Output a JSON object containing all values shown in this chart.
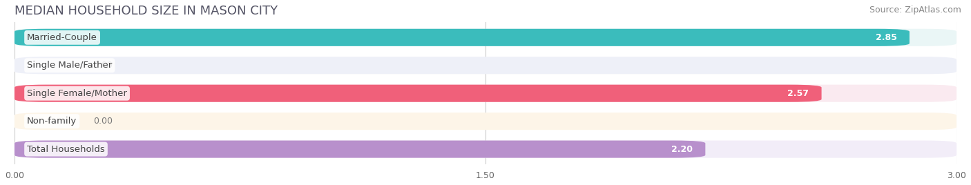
{
  "title": "MEDIAN HOUSEHOLD SIZE IN MASON CITY",
  "source": "Source: ZipAtlas.com",
  "categories": [
    "Married-Couple",
    "Single Male/Father",
    "Single Female/Mother",
    "Non-family",
    "Total Households"
  ],
  "values": [
    2.85,
    0.0,
    2.57,
    0.0,
    2.2
  ],
  "bar_colors": [
    "#3bbcbc",
    "#9aaee0",
    "#f0607a",
    "#f0c898",
    "#b890cc"
  ],
  "bar_bg_colors": [
    "#eaf6f6",
    "#eef0f8",
    "#faeaf0",
    "#fdf5e8",
    "#f2edf8"
  ],
  "xlim": [
    0,
    3.0
  ],
  "xticks": [
    0.0,
    1.5,
    3.0
  ],
  "xtick_labels": [
    "0.00",
    "1.50",
    "3.00"
  ],
  "title_fontsize": 13,
  "source_fontsize": 9,
  "label_fontsize": 9.5,
  "value_fontsize": 9,
  "background_color": "#ffffff"
}
